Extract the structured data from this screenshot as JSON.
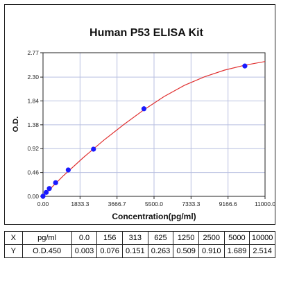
{
  "chart_data": {
    "type": "scatter",
    "title": "Human P53 ELISA Kit",
    "xlabel": "Concentration(pg/ml)",
    "ylabel": "O.D.",
    "xlim": [
      0,
      11000
    ],
    "ylim": [
      0,
      2.77
    ],
    "x_ticks": [
      "0.00",
      "1833.3",
      "3666.7",
      "5500.0",
      "7333.3",
      "9166.6",
      "11000.0"
    ],
    "x_tick_values": [
      0,
      1833.3,
      3666.7,
      5500.0,
      7333.3,
      9166.6,
      11000.0
    ],
    "y_ticks": [
      "0.00",
      "0.46",
      "0.92",
      "1.38",
      "1.84",
      "2.30",
      "2.77"
    ],
    "y_tick_values": [
      0,
      0.46,
      0.92,
      1.38,
      1.84,
      2.3,
      2.77
    ],
    "grid": true,
    "points": {
      "x": [
        0,
        156,
        313,
        625,
        1250,
        2500,
        5000,
        10000
      ],
      "y": [
        0.003,
        0.076,
        0.151,
        0.263,
        0.509,
        0.91,
        1.689,
        2.514
      ]
    },
    "fit_curve": {
      "x": [
        0,
        500,
        1000,
        2000,
        3000,
        4000,
        5000,
        6000,
        7000,
        8000,
        9000,
        10000,
        11000
      ],
      "y": [
        0.003,
        0.2,
        0.395,
        0.75,
        1.08,
        1.385,
        1.67,
        1.925,
        2.14,
        2.305,
        2.435,
        2.53,
        2.6
      ]
    },
    "colors": {
      "curve": "#e03030",
      "points": "#1a1aff",
      "grid": "#b8bfe0"
    }
  },
  "table": {
    "rows": [
      [
        "X",
        "pg/ml",
        "0.0",
        "156",
        "313",
        "625",
        "1250",
        "2500",
        "5000",
        "10000"
      ],
      [
        "Y",
        "O.D.450",
        "0.003",
        "0.076",
        "0.151",
        "0.263",
        "0.509",
        "0.910",
        "1.689",
        "2.514"
      ]
    ]
  }
}
